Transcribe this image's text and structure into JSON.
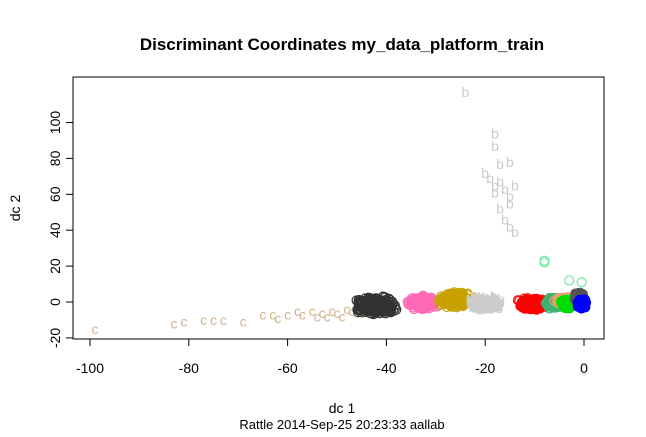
{
  "chart_data": {
    "type": "scatter",
    "title": "Discriminant Coordinates my_data_platform_train",
    "xlabel": "dc 1",
    "ylabel": "dc 2",
    "subtitle": "Rattle 2014-Sep-25 20:23:33 aallab",
    "xlim": [
      -100,
      0
    ],
    "ylim": [
      -20,
      120
    ],
    "x_ticks": [
      -100,
      -80,
      -60,
      -40,
      -20,
      0
    ],
    "y_ticks": [
      -20,
      0,
      20,
      40,
      60,
      80,
      100
    ],
    "grid": false,
    "legend": "none",
    "series": [
      {
        "symbol": "c",
        "color": "#d2b48c",
        "points": [
          [
            -99,
            -15
          ],
          [
            -83,
            -12
          ],
          [
            -81,
            -11
          ],
          [
            -77,
            -10
          ],
          [
            -75,
            -10
          ],
          [
            -73,
            -10
          ],
          [
            -69,
            -11
          ],
          [
            -65,
            -7
          ],
          [
            -63,
            -7
          ],
          [
            -62,
            -9
          ],
          [
            -60,
            -7
          ],
          [
            -58,
            -5
          ],
          [
            -57,
            -7
          ],
          [
            -55,
            -5
          ],
          [
            -54,
            -8
          ],
          [
            -53,
            -6
          ],
          [
            -52,
            -8
          ],
          [
            -51,
            -5
          ],
          [
            -50,
            -6
          ],
          [
            -49,
            -8
          ],
          [
            -48,
            -4
          ],
          [
            -47,
            -5
          ],
          [
            -46,
            -3
          ],
          [
            -45,
            -6
          ]
        ]
      },
      {
        "symbol": "o",
        "color": "#333333",
        "cluster": {
          "x": [
            -47,
            -37
          ],
          "y": [
            -8,
            4
          ]
        }
      },
      {
        "symbol": "o",
        "color": "#ff69b4",
        "cluster": {
          "x": [
            -36,
            -29
          ],
          "y": [
            -5,
            4
          ]
        }
      },
      {
        "symbol": "o",
        "color": "#c8a000",
        "cluster": {
          "x": [
            -30,
            -22
          ],
          "y": [
            -4,
            6
          ]
        }
      },
      {
        "symbol": "b",
        "color": "#cccccc",
        "cluster": {
          "x": [
            -24,
            -16
          ],
          "y": [
            -5,
            4
          ]
        },
        "points": [
          [
            -24,
            117
          ],
          [
            -18,
            94
          ],
          [
            -18,
            87
          ],
          [
            -17,
            77
          ],
          [
            -15,
            78
          ],
          [
            -20,
            72
          ],
          [
            -19,
            69
          ],
          [
            -18,
            65
          ],
          [
            -17,
            67
          ],
          [
            -16,
            63
          ],
          [
            -18,
            61
          ],
          [
            -15,
            59
          ],
          [
            -14,
            65
          ],
          [
            -15,
            55
          ],
          [
            -17,
            52
          ],
          [
            -16,
            46
          ],
          [
            -15,
            42
          ],
          [
            -14,
            39
          ]
        ]
      },
      {
        "symbol": "o",
        "color": "#ff0000",
        "cluster": {
          "x": [
            -14,
            -7
          ],
          "y": [
            -5,
            3
          ]
        }
      },
      {
        "symbol": "o",
        "color": "#3cb371",
        "cluster": {
          "x": [
            -8,
            -4
          ],
          "y": [
            -4,
            3
          ]
        }
      },
      {
        "symbol": "o",
        "color": "#6fe9a0",
        "points": [
          [
            -8,
            23
          ],
          [
            -8,
            22
          ],
          [
            -3,
            12
          ],
          [
            -0.5,
            11
          ]
        ]
      },
      {
        "symbol": "o",
        "color": "#e8a070",
        "cluster": {
          "x": [
            -6,
            -2
          ],
          "y": [
            -2,
            3
          ]
        }
      },
      {
        "symbol": "o",
        "color": "#00dd00",
        "cluster": {
          "x": [
            -5,
            -2
          ],
          "y": [
            -4,
            2
          ]
        }
      },
      {
        "symbol": "o",
        "color": "#555555",
        "cluster": {
          "x": [
            -2,
            0
          ],
          "y": [
            -1,
            6
          ]
        }
      },
      {
        "symbol": "o",
        "color": "#0000ff",
        "cluster": {
          "x": [
            -1.5,
            0.5
          ],
          "y": [
            -4,
            2
          ]
        }
      }
    ]
  }
}
